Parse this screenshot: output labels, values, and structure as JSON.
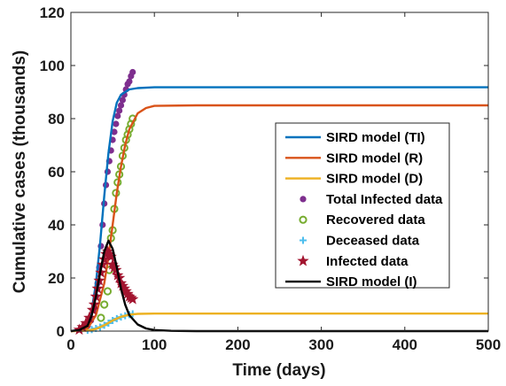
{
  "chart_data": {
    "type": "line",
    "xlabel": "Time (days)",
    "ylabel": "Cumulative cases (thousands)",
    "xlim": [
      0,
      500
    ],
    "ylim": [
      0,
      120
    ],
    "xticks": [
      "0",
      "100",
      "200",
      "300",
      "400",
      "500"
    ],
    "yticks": [
      "0",
      "20",
      "40",
      "60",
      "80",
      "100",
      "120"
    ],
    "grid": false,
    "legend_position": "center-right",
    "series": [
      {
        "name": "SIRD model (TI)",
        "kind": "line",
        "color": "#0072BD",
        "x": [
          0,
          10,
          20,
          25,
          30,
          35,
          40,
          45,
          50,
          55,
          60,
          70,
          80,
          100,
          150,
          500
        ],
        "y": [
          0,
          0.5,
          3,
          8,
          18,
          33,
          51,
          67,
          79,
          86,
          89,
          91,
          91.5,
          91.8,
          91.8,
          91.8
        ]
      },
      {
        "name": "SIRD model (R)",
        "kind": "line",
        "color": "#D95319",
        "x": [
          0,
          10,
          20,
          30,
          40,
          45,
          50,
          55,
          60,
          65,
          70,
          80,
          90,
          100,
          150,
          500
        ],
        "y": [
          0,
          0.2,
          1,
          6,
          18,
          28,
          40,
          52,
          62,
          70,
          76,
          82,
          84,
          84.8,
          85,
          85
        ]
      },
      {
        "name": "SIRD model (D)",
        "kind": "line",
        "color": "#EDB120",
        "x": [
          0,
          10,
          20,
          30,
          40,
          50,
          60,
          70,
          80,
          100,
          500
        ],
        "y": [
          0,
          0.05,
          0.2,
          0.8,
          2.2,
          4,
          5.4,
          6.2,
          6.5,
          6.6,
          6.6
        ]
      },
      {
        "name": "Total Infected data",
        "kind": "dots",
        "color": "#7E2F8E",
        "x": [
          20,
          24,
          28,
          30,
          32,
          34,
          36,
          38,
          40,
          42,
          44,
          46,
          48,
          50,
          52,
          54,
          56,
          58,
          60,
          62,
          64,
          66,
          68,
          70,
          72,
          74
        ],
        "y": [
          2,
          4,
          8,
          13,
          18,
          24,
          32,
          40,
          48,
          55,
          60,
          64,
          68,
          72,
          75,
          78,
          81,
          83,
          85,
          87,
          89,
          91,
          93,
          94,
          96,
          97.5
        ]
      },
      {
        "name": "Recovered data",
        "kind": "circles",
        "color": "#77AC30",
        "x": [
          36,
          40,
          44,
          46,
          48,
          50,
          52,
          54,
          56,
          58,
          60,
          62,
          64,
          66,
          68,
          70,
          72,
          74
        ],
        "y": [
          5,
          10,
          15,
          23,
          35,
          38,
          46,
          52,
          56,
          59,
          62,
          66,
          69,
          72,
          74,
          76,
          78,
          80
        ]
      },
      {
        "name": "Deceased data",
        "kind": "plus",
        "color": "#4DBEEE",
        "x": [
          20,
          25,
          30,
          35,
          40,
          45,
          50,
          55,
          60,
          65,
          70,
          74
        ],
        "y": [
          0.3,
          0.6,
          1,
          1.5,
          2.2,
          3,
          4,
          4.7,
          5.3,
          5.8,
          6.2,
          6.5
        ]
      },
      {
        "name": "Infected data",
        "kind": "stars",
        "color": "#A2142F",
        "x": [
          10,
          14,
          18,
          22,
          26,
          28,
          30,
          32,
          34,
          36,
          38,
          40,
          42,
          44,
          46,
          48,
          50,
          52,
          54,
          56,
          58,
          60,
          62,
          64,
          66,
          68,
          70,
          72,
          74
        ],
        "y": [
          0.5,
          1.5,
          3,
          5,
          8,
          10,
          13,
          16,
          19,
          22,
          25,
          27,
          29,
          30,
          29,
          28,
          25,
          24,
          23,
          21,
          20,
          18,
          17,
          16,
          15,
          14,
          13,
          12.5,
          12
        ]
      },
      {
        "name": "SIRD model (I)",
        "kind": "line",
        "color": "#000000",
        "x": [
          0,
          10,
          20,
          25,
          30,
          35,
          40,
          45,
          50,
          55,
          60,
          65,
          70,
          80,
          90,
          100,
          120,
          150,
          500
        ],
        "y": [
          0,
          0.4,
          2,
          6,
          13,
          22,
          30,
          34,
          31,
          24,
          16,
          10,
          6,
          2.5,
          1,
          0.4,
          0.1,
          0,
          0
        ]
      }
    ]
  }
}
